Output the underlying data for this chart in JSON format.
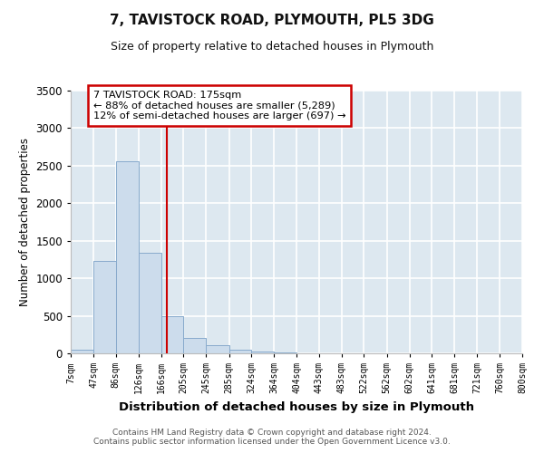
{
  "title": "7, TAVISTOCK ROAD, PLYMOUTH, PL5 3DG",
  "subtitle": "Size of property relative to detached houses in Plymouth",
  "xlabel": "Distribution of detached houses by size in Plymouth",
  "ylabel": "Number of detached properties",
  "bar_color": "#ccdcec",
  "bar_edge_color": "#88aacc",
  "background_color": "#dde8f0",
  "grid_color": "#ffffff",
  "fig_background": "#ffffff",
  "bin_labels": [
    "7sqm",
    "47sqm",
    "86sqm",
    "126sqm",
    "166sqm",
    "205sqm",
    "245sqm",
    "285sqm",
    "324sqm",
    "364sqm",
    "404sqm",
    "443sqm",
    "483sqm",
    "522sqm",
    "562sqm",
    "602sqm",
    "641sqm",
    "681sqm",
    "721sqm",
    "760sqm",
    "800sqm"
  ],
  "bin_edges": [
    7,
    47,
    86,
    126,
    166,
    205,
    245,
    285,
    324,
    364,
    404,
    443,
    483,
    522,
    562,
    602,
    641,
    681,
    721,
    760,
    800
  ],
  "bar_heights": [
    50,
    1230,
    2560,
    1340,
    500,
    210,
    110,
    45,
    20,
    10,
    5,
    5,
    3,
    0,
    0,
    0,
    0,
    0,
    0,
    0
  ],
  "ylim": [
    0,
    3500
  ],
  "yticks": [
    0,
    500,
    1000,
    1500,
    2000,
    2500,
    3000,
    3500
  ],
  "red_line_x": 175,
  "annotation_text": "7 TAVISTOCK ROAD: 175sqm\n← 88% of detached houses are smaller (5,289)\n12% of semi-detached houses are larger (697) →",
  "annotation_box_color": "#ffffff",
  "annotation_box_edge": "#cc0000",
  "footer_line1": "Contains HM Land Registry data © Crown copyright and database right 2024.",
  "footer_line2": "Contains public sector information licensed under the Open Government Licence v3.0."
}
